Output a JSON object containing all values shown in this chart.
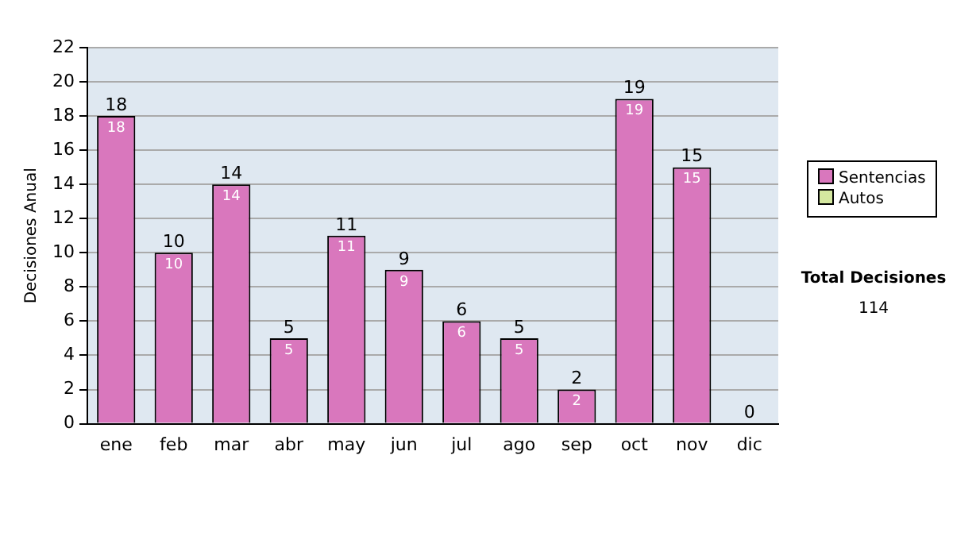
{
  "chart_data": {
    "type": "bar",
    "ylabel": "Decisiones Anual",
    "stacked": true,
    "categories": [
      "ene",
      "feb",
      "mar",
      "abr",
      "may",
      "jun",
      "jul",
      "ago",
      "sep",
      "oct",
      "nov",
      "dic"
    ],
    "series": [
      {
        "name": "Sentencias",
        "color": "#d977bd",
        "values": [
          18,
          10,
          14,
          5,
          11,
          9,
          6,
          5,
          2,
          19,
          15,
          0
        ],
        "value_labels": [
          "18",
          "10",
          "14",
          "5",
          "11",
          "9",
          "6",
          "5",
          "2",
          "19",
          "15",
          null
        ]
      },
      {
        "name": "Autos",
        "color": "#d5e8a0",
        "values": [
          0,
          0,
          0,
          0,
          0,
          0,
          0,
          0,
          0,
          0,
          0,
          0
        ]
      }
    ],
    "totals": [
      "18",
      "10",
      "14",
      "5",
      "11",
      "9",
      "6",
      "5",
      "2",
      "19",
      "15",
      "0"
    ],
    "ylim": [
      0,
      22
    ],
    "yticks": [
      0,
      2,
      4,
      6,
      8,
      10,
      12,
      14,
      16,
      18,
      20,
      22
    ],
    "grid": "y",
    "legend": "right",
    "annotations": [
      "Total Decisiones",
      "114"
    ]
  }
}
